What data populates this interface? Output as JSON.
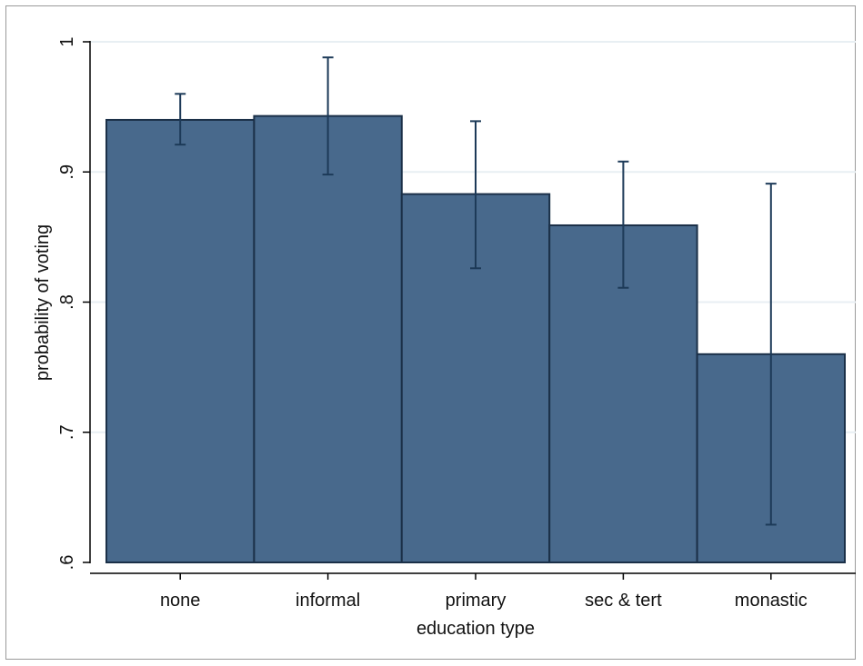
{
  "chart_data": {
    "type": "bar",
    "title": "",
    "xlabel": "education type",
    "ylabel": "probability of voting",
    "categories": [
      "none",
      "informal",
      "primary",
      "sec & tert",
      "monastic"
    ],
    "values": [
      0.94,
      0.943,
      0.883,
      0.859,
      0.76
    ],
    "ci_low": [
      0.921,
      0.898,
      0.826,
      0.811,
      0.629
    ],
    "ci_high": [
      0.96,
      0.988,
      0.939,
      0.908,
      0.891
    ],
    "ylim": [
      0.6,
      1.0
    ],
    "yticks": [
      0.6,
      0.7,
      0.8,
      0.9,
      1.0
    ],
    "ytick_labels": [
      ".6",
      ".7",
      ".8",
      ".9",
      "1"
    ],
    "grid": true,
    "colors": {
      "bar": "#48698c",
      "bar_edge": "#1b3048",
      "errorbar": "#1d3a58",
      "grid": "#e8eff3",
      "axis": "#000000"
    }
  }
}
